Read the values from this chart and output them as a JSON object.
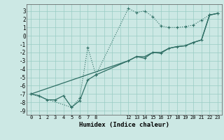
{
  "xlabel": "Humidex (Indice chaleur)",
  "bg_color": "#cce8e4",
  "grid_color": "#99ccc4",
  "line_color": "#2e6e64",
  "xlim": [
    -0.5,
    23.5
  ],
  "ylim": [
    -9.5,
    3.8
  ],
  "xtick_positions": [
    0,
    1,
    2,
    3,
    4,
    5,
    6,
    7,
    8,
    12,
    13,
    14,
    15,
    16,
    17,
    18,
    19,
    20,
    21,
    22,
    23
  ],
  "xtick_labels": [
    "0",
    "1",
    "2",
    "3",
    "4",
    "5",
    "6",
    "7",
    "8",
    "12",
    "13",
    "14",
    "15",
    "16",
    "17",
    "18",
    "19",
    "20",
    "21",
    "22",
    "23"
  ],
  "ytick_positions": [
    3,
    2,
    1,
    0,
    -1,
    -2,
    -3,
    -4,
    -5,
    -6,
    -7,
    -8,
    -9
  ],
  "ytick_labels": [
    "3",
    "2",
    "1",
    "0",
    "-1",
    "-2",
    "-3",
    "-4",
    "-5",
    "-6",
    "-7",
    "-8",
    "-9"
  ],
  "series1_x": [
    0,
    1,
    2,
    3,
    4,
    5,
    6,
    7,
    8,
    12,
    13,
    14,
    15,
    16,
    17,
    18,
    19,
    20,
    21,
    22,
    23
  ],
  "series1_y": [
    -7.0,
    -7.2,
    -7.7,
    -7.7,
    -7.2,
    -8.6,
    -7.8,
    -5.3,
    -4.7,
    -3.0,
    -2.5,
    -2.7,
    -2.0,
    -2.1,
    -1.5,
    -1.3,
    -1.2,
    -0.8,
    -0.5,
    2.5,
    2.7
  ],
  "series2_x": [
    0,
    5,
    6,
    7,
    8,
    12,
    13,
    14,
    15,
    16,
    17,
    18,
    19,
    20,
    21,
    22,
    23
  ],
  "series2_y": [
    -7.0,
    -8.6,
    -7.5,
    -1.4,
    -4.7,
    3.3,
    2.8,
    3.0,
    2.3,
    1.2,
    1.0,
    1.0,
    1.1,
    1.3,
    1.9,
    2.5,
    2.7
  ],
  "series3_x": [
    0,
    12,
    13,
    14,
    15,
    16,
    17,
    18,
    19,
    20,
    21,
    22,
    23
  ],
  "series3_y": [
    -7.0,
    -3.0,
    -2.5,
    -2.5,
    -2.0,
    -2.0,
    -1.5,
    -1.3,
    -1.2,
    -0.8,
    -0.5,
    2.5,
    2.7
  ]
}
